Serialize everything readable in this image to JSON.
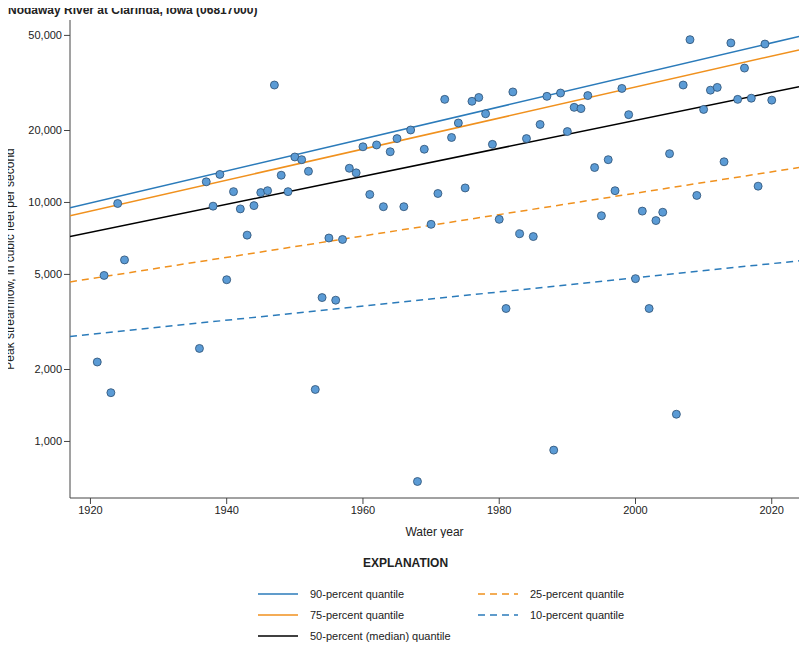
{
  "chart_data": {
    "type": "scatter",
    "title": "Nodaway River at Clarinda, Iowa (06817000)",
    "x_label": "Water year",
    "y_label": "Peak streamflow, in cubic feet per second",
    "legend_title": "EXPLANATION",
    "log": "y",
    "grid": false,
    "xlim": [
      1917,
      2024
    ],
    "xticks": [
      1920,
      1940,
      1960,
      1980,
      2000,
      2020
    ],
    "ylim": [
      580,
      58000
    ],
    "yticks": [
      {
        "value": 1000,
        "label": "1,000"
      },
      {
        "value": 2000,
        "label": "2,000"
      },
      {
        "value": 5000,
        "label": "5,000"
      },
      {
        "value": 10000,
        "label": "10,000"
      },
      {
        "value": 20000,
        "label": "20,000"
      },
      {
        "value": 50000,
        "label": "50,000"
      }
    ],
    "marker": "circle",
    "color": "#5b9bd5",
    "x": [
      1921,
      1922,
      1923,
      1924,
      1925,
      1936,
      1937,
      1938,
      1939,
      1940,
      1941,
      1942,
      1943,
      1944,
      1945,
      1946,
      1947,
      1948,
      1949,
      1950,
      1951,
      1952,
      1953,
      1954,
      1955,
      1956,
      1957,
      1958,
      1959,
      1960,
      1961,
      1962,
      1963,
      1964,
      1965,
      1966,
      1967,
      1968,
      1969,
      1970,
      1971,
      1972,
      1973,
      1974,
      1975,
      1976,
      1977,
      1978,
      1979,
      1980,
      1981,
      1982,
      1983,
      1984,
      1985,
      1986,
      1987,
      1988,
      1989,
      1990,
      1991,
      1992,
      1993,
      1994,
      1995,
      1996,
      1997,
      1998,
      1999,
      2000,
      2001,
      2002,
      2003,
      2004,
      2005,
      2006,
      2007,
      2008,
      2009,
      2010,
      2011,
      2012,
      2013,
      2014,
      2015,
      2016,
      2017,
      2018,
      2019,
      2020
    ],
    "values": [
      2150,
      4950,
      1600,
      9900,
      5750,
      2450,
      12200,
      9650,
      13100,
      4750,
      11100,
      9400,
      7300,
      9700,
      11000,
      11200,
      31000,
      13000,
      11100,
      15500,
      15100,
      13500,
      1650,
      4000,
      7100,
      3900,
      7000,
      13900,
      13300,
      17100,
      10800,
      17400,
      9600,
      16300,
      18500,
      9600,
      20100,
      680,
      16700,
      8100,
      10900,
      27000,
      18700,
      21500,
      11500,
      26500,
      27500,
      23500,
      17500,
      8500,
      3600,
      29000,
      7400,
      18500,
      7200,
      21200,
      27800,
      920,
      28700,
      19800,
      25000,
      24700,
      28000,
      14000,
      8800,
      15100,
      11200,
      30000,
      23300,
      4800,
      9200,
      3600,
      8400,
      9100,
      16000,
      1300,
      31000,
      48000,
      10700,
      24500,
      29500,
      30300,
      14800,
      46500,
      27000,
      36500,
      27300,
      11700,
      46000,
      26800
    ],
    "series": [
      {
        "name": "90-percent quantile",
        "type": "line",
        "color": "#2b7bba",
        "line_style": "solid",
        "x": [
          1917,
          2024
        ],
        "values": [
          9500,
          49500
        ]
      },
      {
        "name": "75-percent quantile",
        "type": "line",
        "color": "#f0911e",
        "line_style": "solid",
        "x": [
          1917,
          2024
        ],
        "values": [
          8800,
          43500
        ]
      },
      {
        "name": "50-percent (median) quantile",
        "type": "line",
        "color": "#000000",
        "line_style": "solid",
        "x": [
          1917,
          2024
        ],
        "values": [
          7200,
          30500
        ]
      },
      {
        "name": "25-percent quantile",
        "type": "line",
        "color": "#f0911e",
        "line_style": "dashed",
        "x": [
          1917,
          2024
        ],
        "values": [
          4650,
          14000
        ]
      },
      {
        "name": "10-percent quantile",
        "type": "line",
        "color": "#2b7bba",
        "line_style": "dashed",
        "x": [
          1917,
          2024
        ],
        "values": [
          2750,
          5700
        ]
      }
    ]
  }
}
